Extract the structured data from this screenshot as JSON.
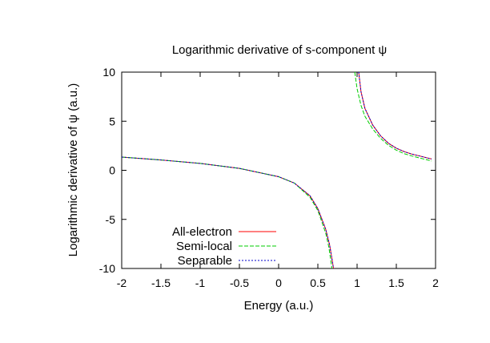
{
  "chart_data": {
    "type": "line",
    "title": "Logarithmic derivative of s-component ψ",
    "xlabel": "Energy (a.u.)",
    "ylabel": "Logarithmic derivative of ψ (a.u.)",
    "xlim": [
      -2,
      2
    ],
    "ylim": [
      -10,
      10
    ],
    "xticks": [
      -2,
      -1.5,
      -1,
      -0.5,
      0,
      0.5,
      1,
      1.5,
      2
    ],
    "xtick_labels": [
      "-2",
      "-1.5",
      "-1",
      "-0.5",
      "0",
      "0.5",
      "1",
      "1.5",
      "2"
    ],
    "yticks": [
      -10,
      -5,
      0,
      5,
      10
    ],
    "ytick_labels": [
      "-10",
      "-5",
      "0",
      "5",
      "10"
    ],
    "grid": false,
    "legend_position": "bottom-left",
    "series": [
      {
        "name": "All-electron",
        "color": "#ff0000",
        "dash": "",
        "segments": [
          [
            [
              -2,
              1.35
            ],
            [
              -1.5,
              1.05
            ],
            [
              -1,
              0.7
            ],
            [
              -0.5,
              0.2
            ],
            [
              0,
              -0.65
            ],
            [
              0.2,
              -1.3
            ],
            [
              0.4,
              -2.6
            ],
            [
              0.5,
              -3.9
            ],
            [
              0.6,
              -6.0
            ],
            [
              0.65,
              -7.6
            ],
            [
              0.7,
              -10
            ]
          ],
          [
            [
              1.02,
              10
            ],
            [
              1.05,
              8.0
            ],
            [
              1.1,
              6.3
            ],
            [
              1.2,
              4.6
            ],
            [
              1.3,
              3.5
            ],
            [
              1.4,
              2.75
            ],
            [
              1.5,
              2.25
            ],
            [
              1.6,
              1.9
            ],
            [
              1.7,
              1.65
            ],
            [
              1.8,
              1.45
            ],
            [
              1.9,
              1.25
            ],
            [
              1.95,
              1.15
            ]
          ]
        ]
      },
      {
        "name": "Semi-local",
        "color": "#00cc00",
        "dash": "5,2",
        "segments": [
          [
            [
              -2,
              1.35
            ],
            [
              -1.5,
              1.05
            ],
            [
              -1,
              0.7
            ],
            [
              -0.5,
              0.2
            ],
            [
              0,
              -0.65
            ],
            [
              0.2,
              -1.3
            ],
            [
              0.4,
              -2.75
            ],
            [
              0.5,
              -4.1
            ],
            [
              0.6,
              -6.4
            ],
            [
              0.64,
              -7.8
            ],
            [
              0.68,
              -10
            ]
          ],
          [
            [
              0.97,
              10
            ],
            [
              1.0,
              8.3
            ],
            [
              1.05,
              6.6
            ],
            [
              1.1,
              5.5
            ],
            [
              1.2,
              4.2
            ],
            [
              1.3,
              3.25
            ],
            [
              1.4,
              2.55
            ],
            [
              1.5,
              2.05
            ],
            [
              1.6,
              1.7
            ],
            [
              1.7,
              1.45
            ],
            [
              1.8,
              1.25
            ],
            [
              1.9,
              1.05
            ],
            [
              1.95,
              0.95
            ]
          ]
        ]
      },
      {
        "name": "Separable",
        "color": "#0000cc",
        "dash": "2,2",
        "segments": [
          [
            [
              -2,
              1.35
            ],
            [
              -1.5,
              1.05
            ],
            [
              -1,
              0.7
            ],
            [
              -0.5,
              0.2
            ],
            [
              0,
              -0.65
            ],
            [
              0.2,
              -1.3
            ],
            [
              0.4,
              -2.6
            ],
            [
              0.5,
              -3.9
            ],
            [
              0.6,
              -6.0
            ],
            [
              0.65,
              -7.6
            ],
            [
              0.7,
              -10
            ]
          ],
          [
            [
              1.02,
              10
            ],
            [
              1.05,
              8.0
            ],
            [
              1.1,
              6.3
            ],
            [
              1.2,
              4.6
            ],
            [
              1.3,
              3.5
            ],
            [
              1.4,
              2.75
            ],
            [
              1.5,
              2.25
            ],
            [
              1.6,
              1.9
            ],
            [
              1.7,
              1.65
            ],
            [
              1.8,
              1.45
            ],
            [
              1.9,
              1.25
            ],
            [
              1.95,
              1.15
            ]
          ]
        ]
      }
    ]
  }
}
